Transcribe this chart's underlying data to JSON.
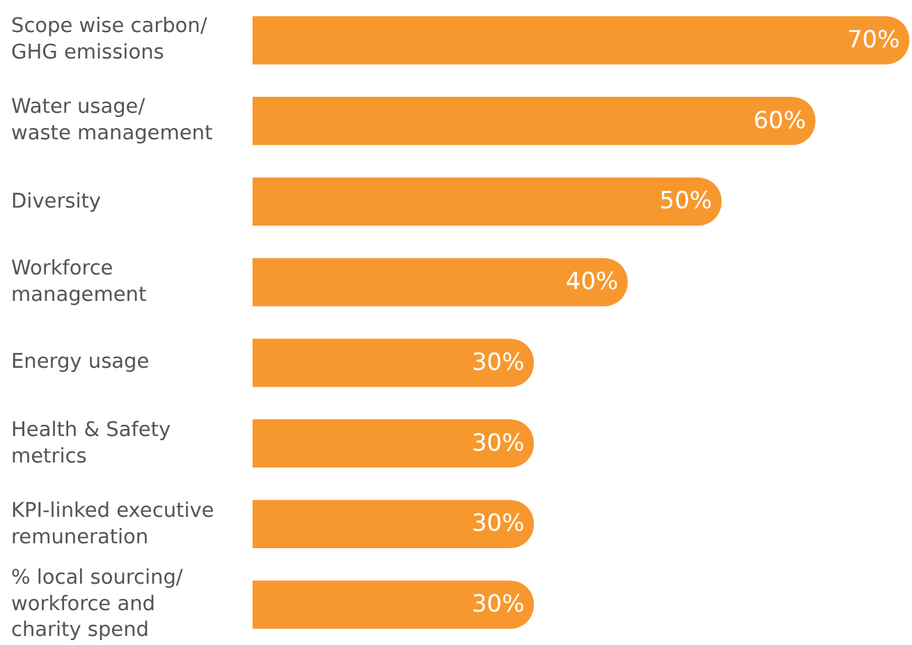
{
  "chart_data": {
    "type": "bar",
    "orientation": "horizontal",
    "categories": [
      "Scope wise carbon/\nGHG emissions",
      "Water usage/\nwaste management",
      "Diversity",
      "Workforce\nmanagement",
      "Energy usage",
      "Health & Safety\nmetrics",
      "KPI-linked executive\nremuneration",
      "% local sourcing/\nworkforce and\ncharity spend"
    ],
    "values": [
      70,
      60,
      50,
      40,
      30,
      30,
      30,
      30
    ],
    "value_labels": [
      "70%",
      "60%",
      "50%",
      "40%",
      "30%",
      "30%",
      "30%",
      "30%"
    ],
    "color": "#f7982f"
  }
}
